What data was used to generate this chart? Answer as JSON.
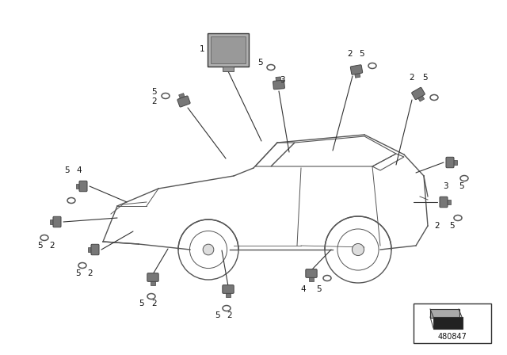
{
  "bg_color": "#ffffff",
  "part_number": "480847",
  "fig_width": 6.4,
  "fig_height": 4.48,
  "dpi": 100,
  "car_color": "#555555",
  "sensor_color": "#777777",
  "sensor_edge": "#444444",
  "line_color": "#333333"
}
